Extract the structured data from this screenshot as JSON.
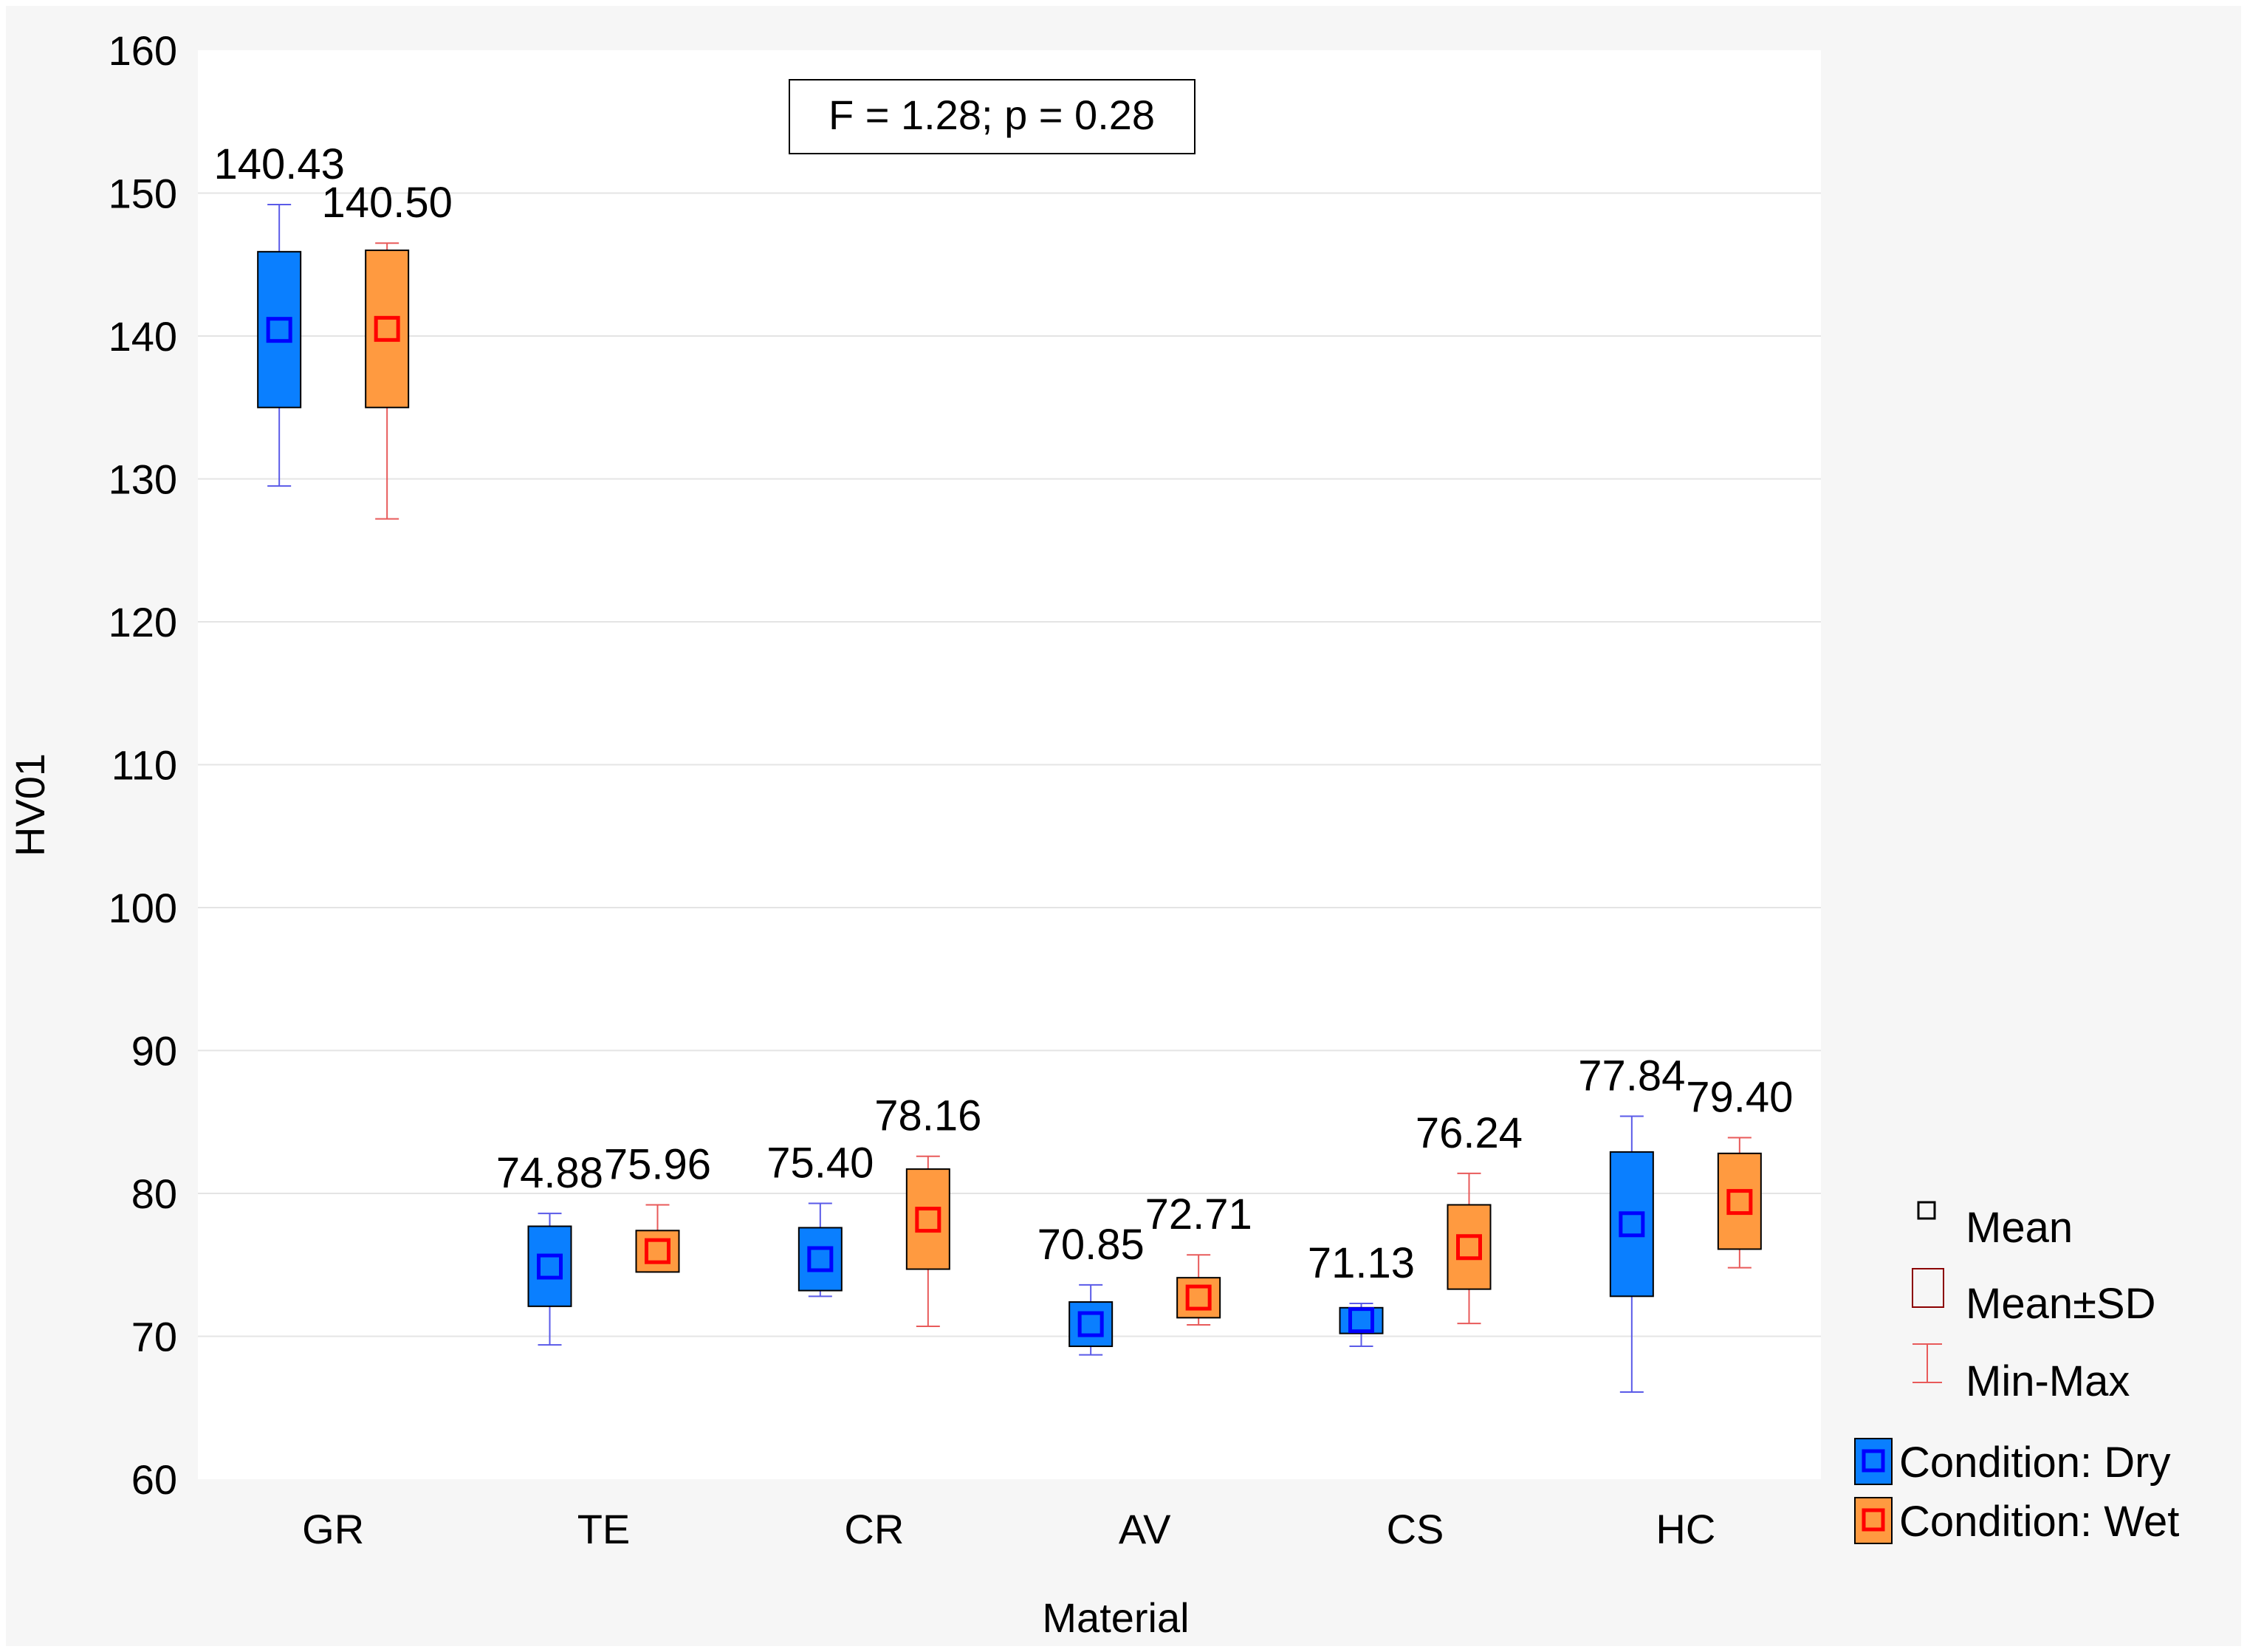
{
  "chart_data": {
    "type": "boxplot",
    "xlabel": "Material",
    "ylabel": "HV01",
    "ylim": [
      60,
      160
    ],
    "yticks": [
      60,
      70,
      80,
      90,
      100,
      110,
      120,
      130,
      140,
      150,
      160
    ],
    "grid": true,
    "annotation": "F = 1.28; p = 0.28",
    "categories": [
      "GR",
      "TE",
      "CR",
      "AV",
      "CS",
      "HC"
    ],
    "series": [
      {
        "name": "Condition: Dry",
        "color": "#0a7fff",
        "marker_color": "#0000ff",
        "whisker_color": "#5a5ae8",
        "mean_labels": [
          "140.43",
          "74.88",
          "75.40",
          "70.85",
          "71.13",
          "77.84"
        ],
        "stats": [
          {
            "mean": 140.43,
            "sd_low": 135.0,
            "sd_high": 145.9,
            "min": 129.5,
            "max": 149.2
          },
          {
            "mean": 74.88,
            "sd_low": 72.1,
            "sd_high": 77.7,
            "min": 69.4,
            "max": 78.6
          },
          {
            "mean": 75.4,
            "sd_low": 73.2,
            "sd_high": 77.6,
            "min": 72.8,
            "max": 79.3
          },
          {
            "mean": 70.85,
            "sd_low": 69.3,
            "sd_high": 72.4,
            "min": 68.7,
            "max": 73.6
          },
          {
            "mean": 71.13,
            "sd_low": 70.2,
            "sd_high": 72.0,
            "min": 69.3,
            "max": 72.3
          },
          {
            "mean": 77.84,
            "sd_low": 72.8,
            "sd_high": 82.9,
            "min": 66.1,
            "max": 85.4
          }
        ]
      },
      {
        "name": "Condition: Wet",
        "color": "#ff9a40",
        "marker_color": "#ff0000",
        "whisker_color": "#e85a5a",
        "mean_labels": [
          "140.50",
          "75.96",
          "78.16",
          "72.71",
          "76.24",
          "79.40"
        ],
        "stats": [
          {
            "mean": 140.5,
            "sd_low": 135.0,
            "sd_high": 146.0,
            "min": 127.2,
            "max": 146.5
          },
          {
            "mean": 75.96,
            "sd_low": 74.5,
            "sd_high": 77.4,
            "min": 74.5,
            "max": 79.2
          },
          {
            "mean": 78.16,
            "sd_low": 74.7,
            "sd_high": 81.7,
            "min": 70.7,
            "max": 82.6
          },
          {
            "mean": 72.71,
            "sd_low": 71.3,
            "sd_high": 74.1,
            "min": 70.8,
            "max": 75.7
          },
          {
            "mean": 76.24,
            "sd_low": 73.3,
            "sd_high": 79.2,
            "min": 70.9,
            "max": 81.4
          },
          {
            "mean": 79.4,
            "sd_low": 76.1,
            "sd_high": 82.8,
            "min": 74.8,
            "max": 83.9
          }
        ]
      }
    ],
    "legend": {
      "placement": "right",
      "symbol_items": [
        "Mean",
        "Mean±SD",
        "Min-Max"
      ]
    }
  }
}
